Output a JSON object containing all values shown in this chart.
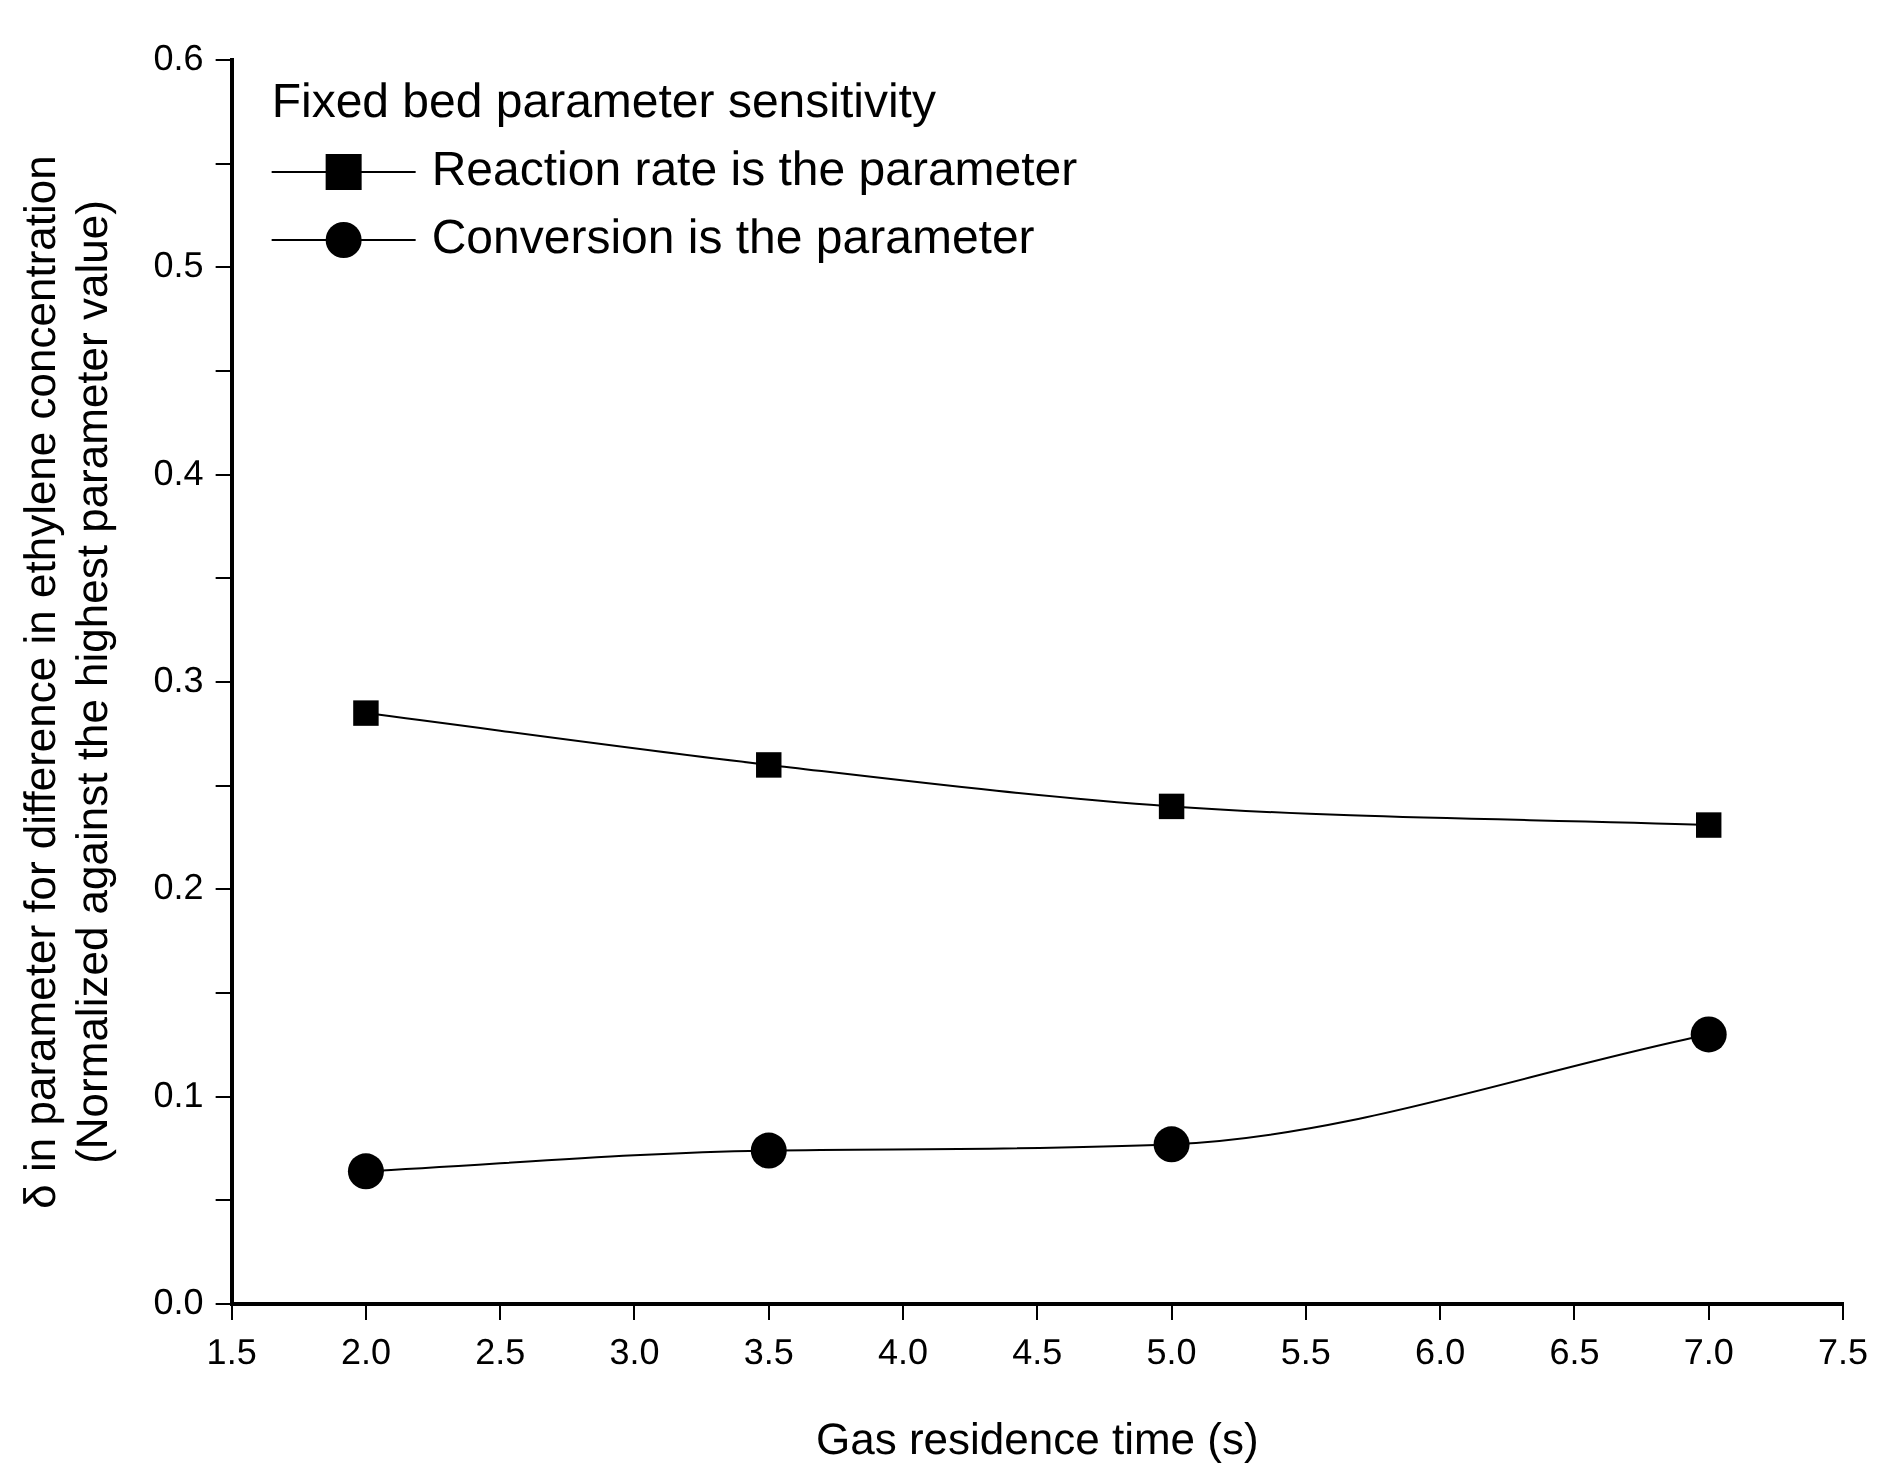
{
  "chart_data": {
    "type": "line",
    "xlabel": "Gas residence time (s)",
    "ylabel": "δ in parameter for difference in ethylene concentration\n(Normalized against the highest parameter value)",
    "legend_title": "Fixed bed parameter sensitivity",
    "legend": "top left",
    "grid": false,
    "x": [
      2.0,
      3.5,
      5.0,
      7.0
    ],
    "series": [
      {
        "name": "Reaction rate is the parameter",
        "color": "#000000",
        "marker": "square",
        "values": [
          0.285,
          0.26,
          0.24,
          0.231
        ]
      },
      {
        "name": "Conversion is the parameter",
        "color": "#000000",
        "marker": "circle",
        "values": [
          0.064,
          0.074,
          0.077,
          0.13
        ]
      }
    ],
    "xlim": [
      1.5,
      7.5
    ],
    "xticks": [
      {
        "value": 1.5,
        "label": "1.5"
      },
      {
        "value": 2,
        "label": "2.0"
      },
      {
        "value": 2.5,
        "label": "2.5"
      },
      {
        "value": 3,
        "label": "3.0"
      },
      {
        "value": 3.5,
        "label": "3.5"
      },
      {
        "value": 4,
        "label": "4.0"
      },
      {
        "value": 4.5,
        "label": "4.5"
      },
      {
        "value": 5,
        "label": "5.0"
      },
      {
        "value": 5.5,
        "label": "5.5"
      },
      {
        "value": 6,
        "label": "6.0"
      },
      {
        "value": 6.5,
        "label": "6.5"
      },
      {
        "value": 7,
        "label": "7.0"
      },
      {
        "value": 7.5,
        "label": "7.5"
      }
    ],
    "ylim": [
      0,
      0.6
    ],
    "yticks": [
      {
        "value": 0,
        "label": "0.0"
      },
      {
        "value": 0.05,
        "label": null
      },
      {
        "value": 0.1,
        "label": "0.1"
      },
      {
        "value": 0.15,
        "label": null
      },
      {
        "value": 0.2,
        "label": "0.2"
      },
      {
        "value": 0.25,
        "label": null
      },
      {
        "value": 0.3,
        "label": "0.3"
      },
      {
        "value": 0.35,
        "label": null
      },
      {
        "value": 0.4,
        "label": "0.4"
      },
      {
        "value": 0.45,
        "label": null
      },
      {
        "value": 0.5,
        "label": "0.5"
      },
      {
        "value": 0.55,
        "label": null
      },
      {
        "value": 0.6,
        "label": "0.6"
      }
    ],
    "line_style": "solid"
  }
}
